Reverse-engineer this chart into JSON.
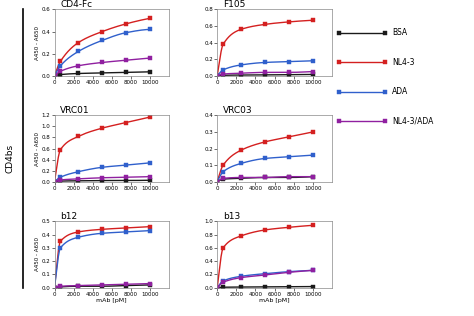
{
  "panels": [
    {
      "title": "CD4-Fc",
      "ylim": [
        0,
        0.6
      ],
      "yticks": [
        0.0,
        0.2,
        0.4,
        0.6
      ],
      "series": {
        "BSA": [
          0,
          0.01,
          0.02,
          0.025,
          0.03,
          0.035
        ],
        "NL4-3": [
          0,
          0.13,
          0.3,
          0.4,
          0.47,
          0.52
        ],
        "ADA": [
          0,
          0.09,
          0.22,
          0.32,
          0.39,
          0.42
        ],
        "NL4-3/ADA": [
          0,
          0.04,
          0.09,
          0.12,
          0.14,
          0.16
        ]
      }
    },
    {
      "title": "F105",
      "ylim": [
        0,
        0.8
      ],
      "yticks": [
        0.0,
        0.2,
        0.4,
        0.6,
        0.8
      ],
      "series": {
        "BSA": [
          0,
          0.005,
          0.008,
          0.01,
          0.012,
          0.015
        ],
        "NL4-3": [
          0,
          0.38,
          0.56,
          0.62,
          0.65,
          0.67
        ],
        "ADA": [
          0,
          0.07,
          0.13,
          0.16,
          0.17,
          0.18
        ],
        "NL4-3/ADA": [
          0,
          0.02,
          0.03,
          0.04,
          0.04,
          0.05
        ]
      }
    },
    {
      "title": "VRC01",
      "ylim": [
        0,
        1.2
      ],
      "yticks": [
        0.0,
        0.2,
        0.4,
        0.6,
        0.8,
        1.0,
        1.2
      ],
      "series": {
        "BSA": [
          0,
          0.01,
          0.015,
          0.02,
          0.02,
          0.025
        ],
        "NL4-3": [
          0,
          0.58,
          0.82,
          0.97,
          1.07,
          1.17
        ],
        "ADA": [
          0,
          0.08,
          0.18,
          0.26,
          0.3,
          0.34
        ],
        "NL4-3/ADA": [
          0,
          0.03,
          0.05,
          0.07,
          0.08,
          0.09
        ]
      }
    },
    {
      "title": "VRC03",
      "ylim": [
        0,
        0.4
      ],
      "yticks": [
        0.0,
        0.1,
        0.2,
        0.3,
        0.4
      ],
      "series": {
        "BSA": [
          0,
          0.015,
          0.02,
          0.025,
          0.025,
          0.03
        ],
        "NL4-3": [
          0,
          0.1,
          0.19,
          0.24,
          0.27,
          0.3
        ],
        "ADA": [
          0,
          0.06,
          0.11,
          0.14,
          0.15,
          0.16
        ],
        "NL4-3/ADA": [
          0,
          0.02,
          0.025,
          0.025,
          0.03,
          0.03
        ]
      }
    },
    {
      "title": "b12",
      "ylim": [
        0,
        0.5
      ],
      "yticks": [
        0.0,
        0.1,
        0.2,
        0.3,
        0.4,
        0.5
      ],
      "series": {
        "BSA": [
          0,
          0.005,
          0.01,
          0.01,
          0.015,
          0.02
        ],
        "NL4-3": [
          0,
          0.35,
          0.42,
          0.44,
          0.45,
          0.46
        ],
        "ADA": [
          0,
          0.3,
          0.38,
          0.41,
          0.42,
          0.43
        ],
        "NL4-3/ADA": [
          0,
          0.01,
          0.015,
          0.02,
          0.025,
          0.03
        ]
      }
    },
    {
      "title": "b13",
      "ylim": [
        0,
        1.0
      ],
      "yticks": [
        0.0,
        0.2,
        0.4,
        0.6,
        0.8,
        1.0
      ],
      "series": {
        "BSA": [
          0,
          0.005,
          0.008,
          0.01,
          0.012,
          0.015
        ],
        "NL4-3": [
          0,
          0.6,
          0.78,
          0.87,
          0.91,
          0.94
        ],
        "ADA": [
          0,
          0.1,
          0.17,
          0.21,
          0.24,
          0.26
        ],
        "NL4-3/ADA": [
          0,
          0.08,
          0.15,
          0.19,
          0.23,
          0.26
        ]
      }
    }
  ],
  "x_values": [
    0,
    625,
    2500,
    5000,
    7500,
    10000
  ],
  "x_ticks": [
    0,
    2000,
    4000,
    6000,
    8000,
    10000
  ],
  "x_lim": [
    0,
    12000
  ],
  "xlabel": "mAb [pM]",
  "ylabel": "A450 - A650",
  "colors": {
    "BSA": "#1a1a1a",
    "NL4-3": "#d42020",
    "ADA": "#3060cc",
    "NL4-3/ADA": "#9020a0"
  },
  "marker": "s",
  "markersize": 2.5,
  "linewidth": 1.0,
  "legend_labels": [
    "BSA",
    "NL4-3",
    "ADA",
    "NL4-3/ADA"
  ],
  "cd4bs_label": "CD4bs",
  "background": "#ffffff"
}
